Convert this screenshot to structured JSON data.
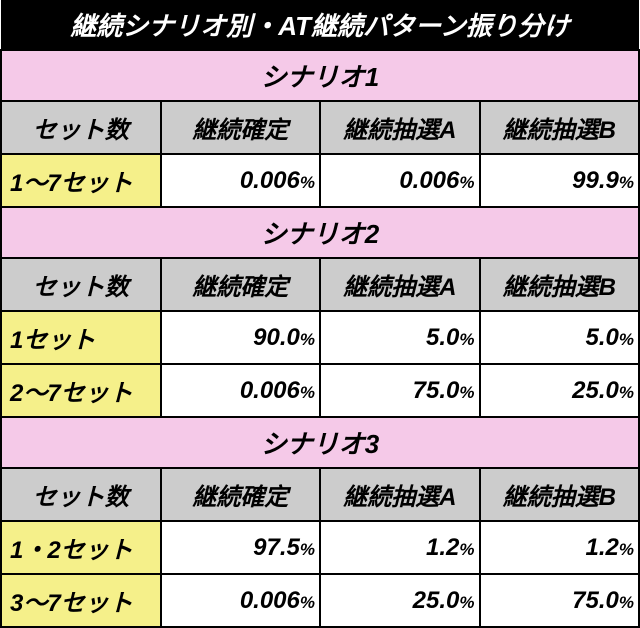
{
  "title": "継続シナリオ別・AT継続パターン振り分け",
  "headers": {
    "set": "セット数",
    "confirm": "継続確定",
    "lotteryA": "継続抽選A",
    "lotteryB": "継続抽選B"
  },
  "percent_symbol": "%",
  "scenarios": [
    {
      "name": "シナリオ1",
      "rows": [
        {
          "set": "1～7セット",
          "confirm": "0.006",
          "lotteryA": "0.006",
          "lotteryB": "99.9"
        }
      ]
    },
    {
      "name": "シナリオ2",
      "rows": [
        {
          "set": "1セット",
          "confirm": "90.0",
          "lotteryA": "5.0",
          "lotteryB": "5.0"
        },
        {
          "set": "2～7セット",
          "confirm": "0.006",
          "lotteryA": "75.0",
          "lotteryB": "25.0"
        }
      ]
    },
    {
      "name": "シナリオ3",
      "rows": [
        {
          "set": "1・2セット",
          "confirm": "97.5",
          "lotteryA": "1.2",
          "lotteryB": "1.2"
        },
        {
          "set": "3～7セット",
          "confirm": "0.006",
          "lotteryA": "25.0",
          "lotteryB": "75.0"
        }
      ]
    }
  ],
  "colors": {
    "title_bg": "#000000",
    "title_fg": "#ffffff",
    "scenario_bg": "#f5c9e8",
    "header_bg": "#cccccc",
    "set_bg": "#f5f08a",
    "value_bg": "#ffffff",
    "border": "#000000"
  }
}
